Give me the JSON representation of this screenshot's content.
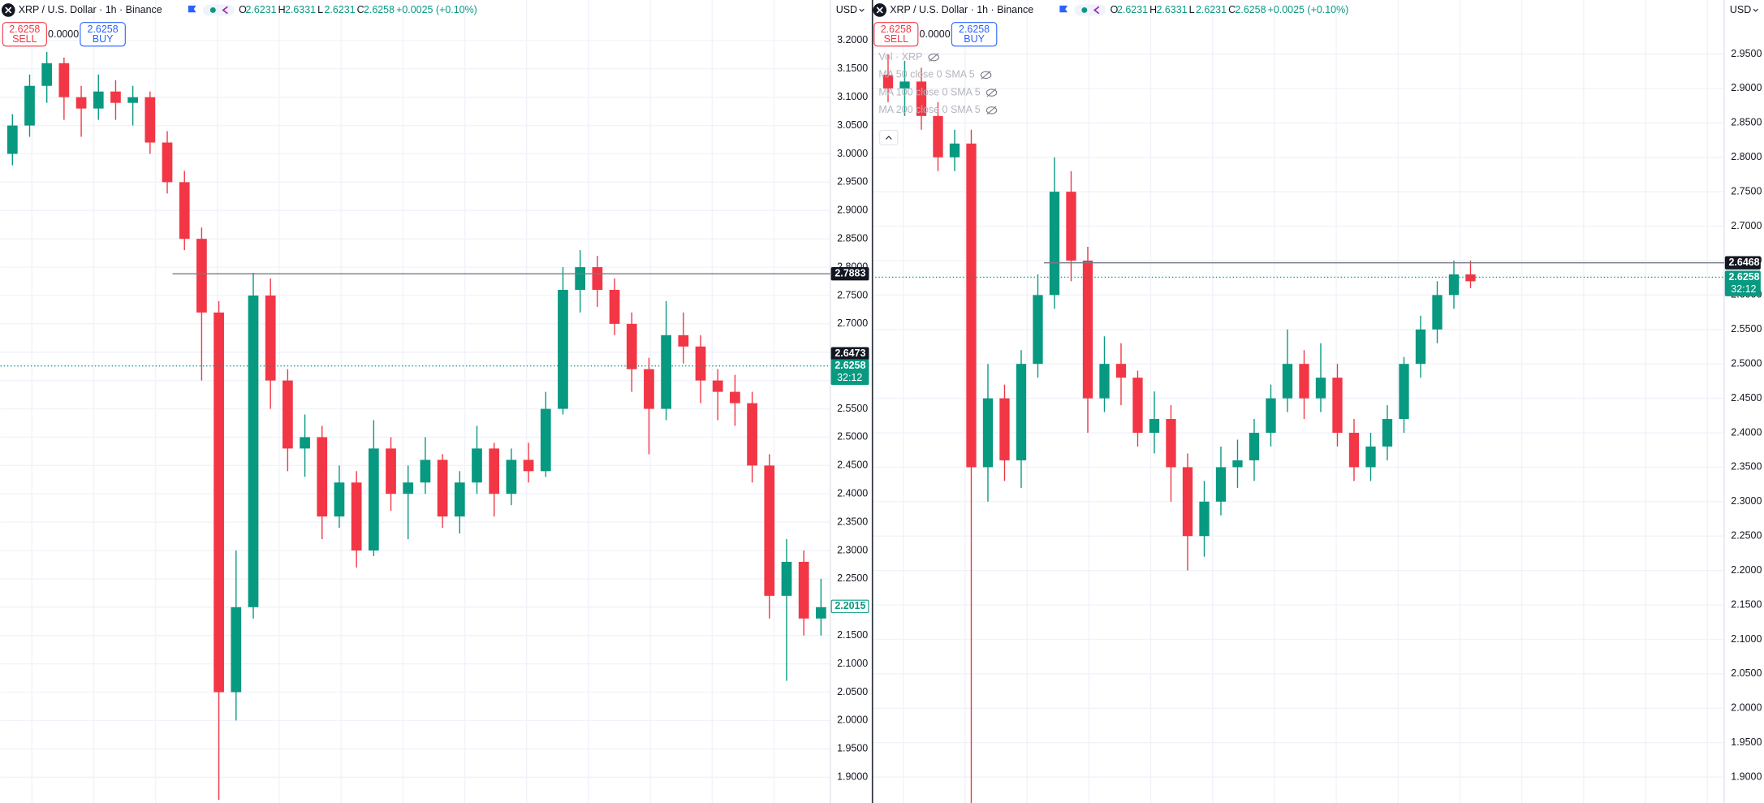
{
  "chart_data": [
    {
      "type": "candlestick",
      "title": "XRP / U.S. Dollar · 1h · Binance",
      "ohlc_fields": [
        {
          "label": "O",
          "value": "2.6231"
        },
        {
          "label": "H",
          "value": "2.6331"
        },
        {
          "label": "L",
          "value": "2.6231"
        },
        {
          "label": "C",
          "value": "2.6258"
        }
      ],
      "change": "+0.0025 (+0.10%)",
      "sell": {
        "price": "2.6258",
        "label": "SELL"
      },
      "spread": "0.0000",
      "buy": {
        "price": "2.6258",
        "label": "BUY"
      },
      "currency": "USD",
      "up_color": "#089981",
      "down_color": "#f23645",
      "ylim": [
        1.8544,
        3.2715
      ],
      "yticks": [
        {
          "value": 1.9,
          "label": "1.9000"
        },
        {
          "value": 1.95,
          "label": "1.9500"
        },
        {
          "value": 2.0,
          "label": "2.0000"
        },
        {
          "value": 2.05,
          "label": "2.0500"
        },
        {
          "value": 2.1,
          "label": "2.1000"
        },
        {
          "value": 2.15,
          "label": "2.1500"
        },
        {
          "value": 2.2,
          "label": "2.2000"
        },
        {
          "value": 2.25,
          "label": "2.2500"
        },
        {
          "value": 2.3,
          "label": "2.3000"
        },
        {
          "value": 2.35,
          "label": "2.3500"
        },
        {
          "value": 2.4,
          "label": "2.4000"
        },
        {
          "value": 2.45,
          "label": "2.4500"
        },
        {
          "value": 2.5,
          "label": "2.5000"
        },
        {
          "value": 2.55,
          "label": "2.5500"
        },
        {
          "value": 2.6,
          "label": "2.6000"
        },
        {
          "value": 2.65,
          "label": "2.6500"
        },
        {
          "value": 2.7,
          "label": "2.7000"
        },
        {
          "value": 2.75,
          "label": "2.7500"
        },
        {
          "value": 2.8,
          "label": "2.8000"
        },
        {
          "value": 2.85,
          "label": "2.8500"
        },
        {
          "value": 2.9,
          "label": "2.9000"
        },
        {
          "value": 2.95,
          "label": "2.9500"
        },
        {
          "value": 3.0,
          "label": "3.0000"
        },
        {
          "value": 3.05,
          "label": "3.0500"
        },
        {
          "value": 3.1,
          "label": "3.1000"
        },
        {
          "value": 3.15,
          "label": "3.1500"
        },
        {
          "value": 3.2,
          "label": "3.2000"
        }
      ],
      "candles": [
        [
          3.0,
          3.07,
          2.98,
          3.05
        ],
        [
          3.05,
          3.14,
          3.03,
          3.12
        ],
        [
          3.12,
          3.18,
          3.09,
          3.16
        ],
        [
          3.16,
          3.17,
          3.06,
          3.1
        ],
        [
          3.1,
          3.12,
          3.03,
          3.08
        ],
        [
          3.08,
          3.14,
          3.06,
          3.11
        ],
        [
          3.11,
          3.13,
          3.06,
          3.09
        ],
        [
          3.09,
          3.12,
          3.05,
          3.1
        ],
        [
          3.1,
          3.11,
          3.0,
          3.02
        ],
        [
          3.02,
          3.04,
          2.93,
          2.95
        ],
        [
          2.95,
          2.97,
          2.83,
          2.85
        ],
        [
          2.85,
          2.87,
          2.6,
          2.72
        ],
        [
          2.72,
          2.74,
          1.86,
          2.05
        ],
        [
          2.05,
          2.3,
          2.0,
          2.2
        ],
        [
          2.2,
          2.79,
          2.18,
          2.75
        ],
        [
          2.75,
          2.78,
          2.55,
          2.6
        ],
        [
          2.6,
          2.62,
          2.44,
          2.48
        ],
        [
          2.48,
          2.54,
          2.43,
          2.5
        ],
        [
          2.5,
          2.52,
          2.32,
          2.36
        ],
        [
          2.36,
          2.45,
          2.34,
          2.42
        ],
        [
          2.42,
          2.44,
          2.27,
          2.3
        ],
        [
          2.3,
          2.53,
          2.29,
          2.48
        ],
        [
          2.48,
          2.5,
          2.37,
          2.4
        ],
        [
          2.4,
          2.45,
          2.32,
          2.42
        ],
        [
          2.42,
          2.5,
          2.4,
          2.46
        ],
        [
          2.46,
          2.47,
          2.34,
          2.36
        ],
        [
          2.36,
          2.44,
          2.33,
          2.42
        ],
        [
          2.42,
          2.52,
          2.4,
          2.48
        ],
        [
          2.48,
          2.49,
          2.36,
          2.4
        ],
        [
          2.4,
          2.48,
          2.38,
          2.46
        ],
        [
          2.46,
          2.49,
          2.42,
          2.44
        ],
        [
          2.44,
          2.58,
          2.43,
          2.55
        ],
        [
          2.55,
          2.8,
          2.54,
          2.76
        ],
        [
          2.76,
          2.83,
          2.72,
          2.8
        ],
        [
          2.8,
          2.82,
          2.73,
          2.76
        ],
        [
          2.76,
          2.78,
          2.68,
          2.7
        ],
        [
          2.7,
          2.72,
          2.58,
          2.62
        ],
        [
          2.62,
          2.64,
          2.47,
          2.55
        ],
        [
          2.55,
          2.74,
          2.53,
          2.68
        ],
        [
          2.68,
          2.72,
          2.63,
          2.66
        ],
        [
          2.66,
          2.68,
          2.56,
          2.6
        ],
        [
          2.6,
          2.62,
          2.53,
          2.58
        ],
        [
          2.58,
          2.61,
          2.52,
          2.56
        ],
        [
          2.56,
          2.58,
          2.42,
          2.45
        ],
        [
          2.45,
          2.47,
          2.18,
          2.22
        ],
        [
          2.22,
          2.32,
          2.07,
          2.28
        ],
        [
          2.28,
          2.3,
          2.15,
          2.18
        ],
        [
          2.18,
          2.25,
          2.15,
          2.2
        ]
      ],
      "price_lines": [
        {
          "value": 2.7883,
          "color": "#787b86",
          "style": "solid"
        },
        {
          "value": 2.6258,
          "color": "#089981",
          "style": "dotted"
        }
      ],
      "axis_labels": [
        {
          "value": 2.7883,
          "color": "#131722"
        },
        {
          "value": 2.6473,
          "color": "#131722"
        },
        {
          "value": 2.6258,
          "color": "#089981",
          "countdown": "32:12"
        },
        {
          "value": 2.2015,
          "color": "#089981",
          "outline": true
        }
      ]
    },
    {
      "type": "candlestick",
      "title": "XRP / U.S. Dollar · 1h · Binance",
      "ohlc_fields": [
        {
          "label": "O",
          "value": "2.6231"
        },
        {
          "label": "H",
          "value": "2.6331"
        },
        {
          "label": "L",
          "value": "2.6231"
        },
        {
          "label": "C",
          "value": "2.6258"
        }
      ],
      "change": "+0.0025 (+0.10%)",
      "sell": {
        "price": "2.6258",
        "label": "SELL"
      },
      "spread": "0.0000",
      "buy": {
        "price": "2.6258",
        "label": "BUY"
      },
      "currency": "USD",
      "legend": [
        "Vol · XRP",
        "MA 50 close 0 SMA 5",
        "MA 100 close 0 SMA 5",
        "MA 200 close 0 SMA 5"
      ],
      "up_color": "#089981",
      "down_color": "#f23645",
      "ylim": [
        1.8624,
        3.0284
      ],
      "yticks": [
        {
          "value": 1.9,
          "label": "1.9000"
        },
        {
          "value": 1.95,
          "label": "1.9500"
        },
        {
          "value": 2.0,
          "label": "2.0000"
        },
        {
          "value": 2.05,
          "label": "2.0500"
        },
        {
          "value": 2.1,
          "label": "2.1000"
        },
        {
          "value": 2.15,
          "label": "2.1500"
        },
        {
          "value": 2.2,
          "label": "2.2000"
        },
        {
          "value": 2.25,
          "label": "2.2500"
        },
        {
          "value": 2.3,
          "label": "2.3000"
        },
        {
          "value": 2.35,
          "label": "2.3500"
        },
        {
          "value": 2.4,
          "label": "2.4000"
        },
        {
          "value": 2.45,
          "label": "2.4500"
        },
        {
          "value": 2.5,
          "label": "2.5000"
        },
        {
          "value": 2.55,
          "label": "2.5500"
        },
        {
          "value": 2.6,
          "label": "2.6000"
        },
        {
          "value": 2.65,
          "label": "2.6500"
        },
        {
          "value": 2.7,
          "label": "2.7000"
        },
        {
          "value": 2.75,
          "label": "2.7500"
        },
        {
          "value": 2.8,
          "label": "2.8000"
        },
        {
          "value": 2.85,
          "label": "2.8500"
        },
        {
          "value": 2.9,
          "label": "2.9000"
        },
        {
          "value": 2.95,
          "label": "2.9500"
        }
      ],
      "candles": [
        [
          2.92,
          2.95,
          2.88,
          2.9
        ],
        [
          2.9,
          2.94,
          2.86,
          2.91
        ],
        [
          2.91,
          2.93,
          2.84,
          2.86
        ],
        [
          2.86,
          2.88,
          2.78,
          2.8
        ],
        [
          2.8,
          2.84,
          2.78,
          2.82
        ],
        [
          2.82,
          2.84,
          1.86,
          2.35
        ],
        [
          2.35,
          2.5,
          2.3,
          2.45
        ],
        [
          2.45,
          2.47,
          2.33,
          2.36
        ],
        [
          2.36,
          2.52,
          2.32,
          2.5
        ],
        [
          2.5,
          2.63,
          2.48,
          2.6
        ],
        [
          2.6,
          2.8,
          2.58,
          2.75
        ],
        [
          2.75,
          2.78,
          2.62,
          2.65
        ],
        [
          2.65,
          2.67,
          2.4,
          2.45
        ],
        [
          2.45,
          2.54,
          2.43,
          2.5
        ],
        [
          2.5,
          2.53,
          2.44,
          2.48
        ],
        [
          2.48,
          2.49,
          2.38,
          2.4
        ],
        [
          2.4,
          2.46,
          2.37,
          2.42
        ],
        [
          2.42,
          2.44,
          2.3,
          2.35
        ],
        [
          2.35,
          2.37,
          2.2,
          2.25
        ],
        [
          2.25,
          2.33,
          2.22,
          2.3
        ],
        [
          2.3,
          2.38,
          2.28,
          2.35
        ],
        [
          2.35,
          2.39,
          2.32,
          2.36
        ],
        [
          2.36,
          2.42,
          2.33,
          2.4
        ],
        [
          2.4,
          2.47,
          2.38,
          2.45
        ],
        [
          2.45,
          2.55,
          2.43,
          2.5
        ],
        [
          2.5,
          2.52,
          2.42,
          2.45
        ],
        [
          2.45,
          2.53,
          2.43,
          2.48
        ],
        [
          2.48,
          2.5,
          2.38,
          2.4
        ],
        [
          2.4,
          2.42,
          2.33,
          2.35
        ],
        [
          2.35,
          2.4,
          2.33,
          2.38
        ],
        [
          2.38,
          2.44,
          2.36,
          2.42
        ],
        [
          2.42,
          2.51,
          2.4,
          2.5
        ],
        [
          2.5,
          2.57,
          2.48,
          2.55
        ],
        [
          2.55,
          2.62,
          2.53,
          2.6
        ],
        [
          2.6,
          2.65,
          2.58,
          2.63
        ],
        [
          2.63,
          2.65,
          2.61,
          2.62
        ]
      ],
      "price_lines": [
        {
          "value": 2.6468,
          "color": "#787b86",
          "style": "solid"
        },
        {
          "value": 2.6258,
          "color": "#089981",
          "style": "dotted"
        }
      ],
      "axis_labels": [
        {
          "value": 2.6468,
          "color": "#131722"
        },
        {
          "value": 2.6258,
          "color": "#089981",
          "countdown": "32:12"
        }
      ]
    }
  ]
}
